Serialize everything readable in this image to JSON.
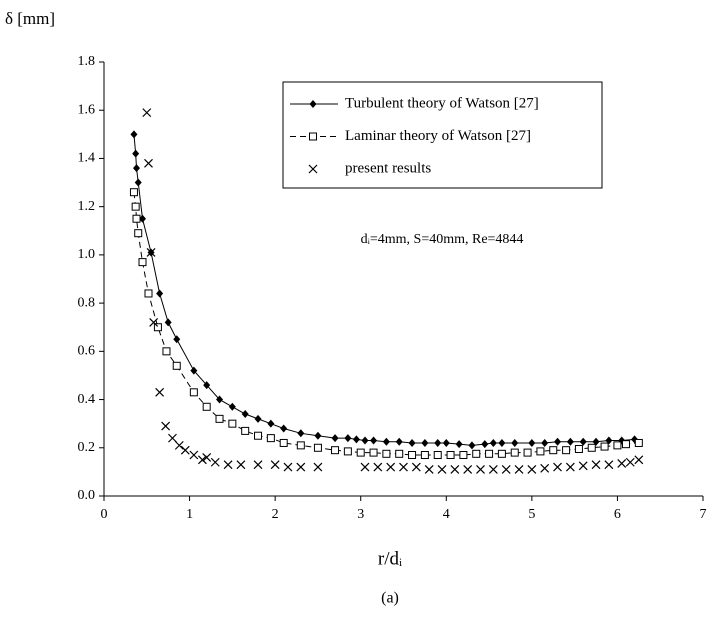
{
  "chart_data": {
    "type": "line",
    "y_label": "δ [mm]",
    "x_label": "r/dᵢ",
    "caption": "(a)",
    "annotation": "dᵢ=4mm, S=40mm, Re=4844",
    "xlim": [
      0,
      7
    ],
    "xticks": [
      0,
      1,
      2,
      3,
      4,
      5,
      6,
      7
    ],
    "ylim": [
      0,
      1.8
    ],
    "yticks": [
      {
        "value": 0,
        "label": "0.0"
      },
      {
        "value": 0.2,
        "label": "0.2"
      },
      {
        "value": 0.4,
        "label": "0.4"
      },
      {
        "value": 0.6,
        "label": "0.6"
      },
      {
        "value": 0.8,
        "label": "0.8"
      },
      {
        "value": 1.0,
        "label": "1.0"
      },
      {
        "value": 1.2,
        "label": "1.2"
      },
      {
        "value": 1.4,
        "label": "1.4"
      },
      {
        "value": 1.6,
        "label": "1.6"
      },
      {
        "value": 1.8,
        "label": "1.8"
      }
    ],
    "grid": false,
    "legend": "upper right",
    "series": [
      {
        "name": "Turbulent theory of Watson [27]",
        "color": "#000000",
        "marker": "diamond",
        "line": "solid",
        "x": [
          0.35,
          0.37,
          0.38,
          0.4,
          0.45,
          0.55,
          0.65,
          0.75,
          0.85,
          1.05,
          1.2,
          1.35,
          1.5,
          1.65,
          1.8,
          1.95,
          2.1,
          2.3,
          2.5,
          2.7,
          2.85,
          2.95,
          3.05,
          3.15,
          3.3,
          3.45,
          3.6,
          3.75,
          3.9,
          4.0,
          4.15,
          4.3,
          4.45,
          4.55,
          4.65,
          4.8,
          5.0,
          5.15,
          5.3,
          5.45,
          5.6,
          5.75,
          5.9,
          6.05,
          6.2
        ],
        "values": [
          1.5,
          1.42,
          1.36,
          1.3,
          1.15,
          1.01,
          0.84,
          0.72,
          0.65,
          0.52,
          0.46,
          0.4,
          0.37,
          0.34,
          0.32,
          0.3,
          0.28,
          0.26,
          0.25,
          0.24,
          0.24,
          0.235,
          0.23,
          0.23,
          0.225,
          0.225,
          0.22,
          0.22,
          0.22,
          0.22,
          0.215,
          0.21,
          0.215,
          0.22,
          0.22,
          0.22,
          0.22,
          0.22,
          0.225,
          0.225,
          0.225,
          0.225,
          0.23,
          0.23,
          0.235
        ]
      },
      {
        "name": "Laminar theory of Watson [27]",
        "color": "#000000",
        "marker": "square",
        "line": "dashed",
        "x": [
          0.35,
          0.37,
          0.38,
          0.4,
          0.45,
          0.52,
          0.63,
          0.73,
          0.85,
          1.05,
          1.2,
          1.35,
          1.5,
          1.65,
          1.8,
          1.95,
          2.1,
          2.3,
          2.5,
          2.7,
          2.85,
          3.0,
          3.15,
          3.3,
          3.45,
          3.6,
          3.75,
          3.9,
          4.05,
          4.2,
          4.35,
          4.5,
          4.65,
          4.8,
          4.95,
          5.1,
          5.25,
          5.4,
          5.55,
          5.7,
          5.85,
          6.0,
          6.1,
          6.25
        ],
        "values": [
          1.26,
          1.2,
          1.15,
          1.09,
          0.97,
          0.84,
          0.7,
          0.6,
          0.54,
          0.43,
          0.37,
          0.32,
          0.3,
          0.27,
          0.25,
          0.24,
          0.22,
          0.21,
          0.2,
          0.19,
          0.185,
          0.18,
          0.18,
          0.175,
          0.175,
          0.17,
          0.17,
          0.17,
          0.17,
          0.17,
          0.175,
          0.175,
          0.175,
          0.18,
          0.18,
          0.185,
          0.19,
          0.19,
          0.195,
          0.2,
          0.205,
          0.21,
          0.215,
          0.22
        ]
      },
      {
        "name": "present results",
        "color": "#000000",
        "marker": "x",
        "line": "none",
        "x": [
          0.5,
          0.52,
          0.55,
          0.58,
          0.65,
          0.72,
          0.8,
          0.88,
          0.95,
          1.05,
          1.15,
          1.2,
          1.3,
          1.45,
          1.6,
          1.8,
          2.0,
          2.15,
          2.3,
          2.5,
          3.05,
          3.2,
          3.35,
          3.5,
          3.65,
          3.8,
          3.95,
          4.1,
          4.25,
          4.4,
          4.55,
          4.7,
          4.85,
          5.0,
          5.15,
          5.3,
          5.45,
          5.6,
          5.75,
          5.9,
          6.05,
          6.15,
          6.25
        ],
        "values": [
          1.59,
          1.38,
          1.01,
          0.72,
          0.43,
          0.29,
          0.24,
          0.21,
          0.19,
          0.17,
          0.15,
          0.16,
          0.14,
          0.13,
          0.13,
          0.13,
          0.13,
          0.12,
          0.12,
          0.12,
          0.12,
          0.12,
          0.12,
          0.12,
          0.12,
          0.11,
          0.11,
          0.11,
          0.11,
          0.11,
          0.11,
          0.11,
          0.11,
          0.11,
          0.115,
          0.12,
          0.12,
          0.125,
          0.13,
          0.13,
          0.135,
          0.14,
          0.15
        ]
      }
    ]
  }
}
